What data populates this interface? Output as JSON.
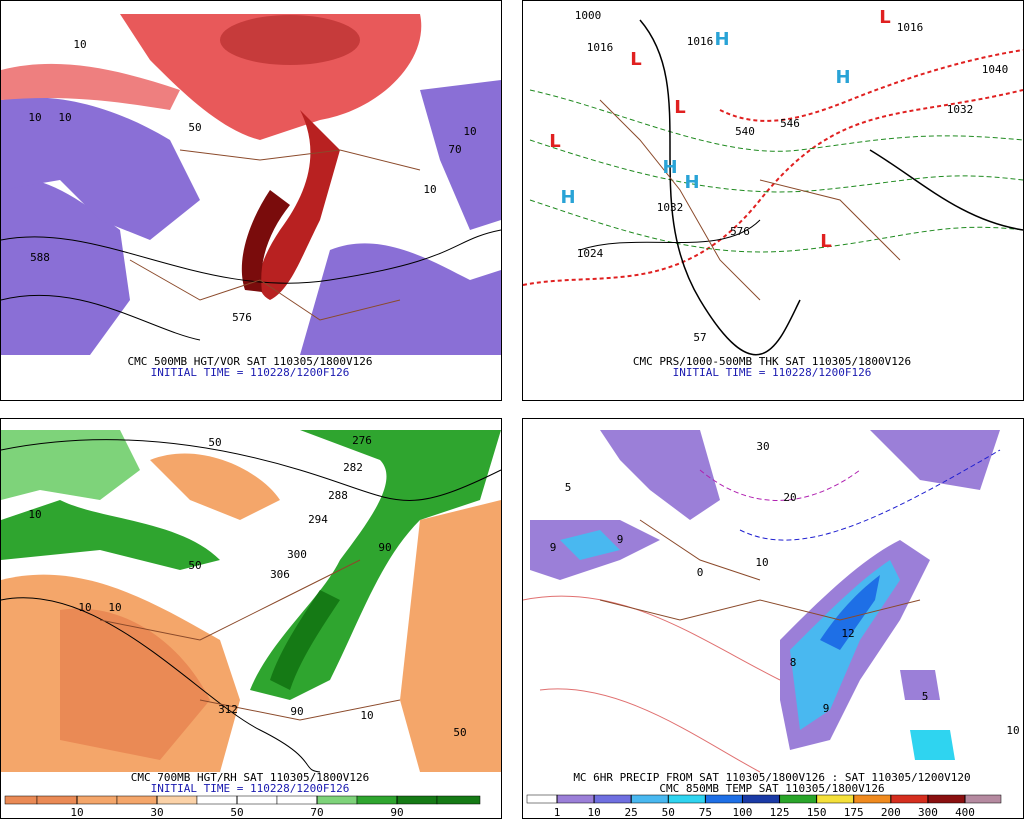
{
  "panels": [
    {
      "caption": [
        "CMC 500MB HGT/VOR SAT 110305/1800V126",
        "INITIAL TIME = 110228/1200F126"
      ],
      "contour_labels": [
        "588",
        "10",
        "10",
        "10",
        "50",
        "10",
        "10",
        "70",
        "576"
      ]
    },
    {
      "caption": [
        "CMC PRS/1000-500MB THK SAT 110305/1800V126",
        "INITIAL TIME = 110228/1200F126"
      ],
      "contour_labels": [
        "1000",
        "1016",
        "1016",
        "1016",
        "1040",
        "1032",
        "1032",
        "1024",
        "540",
        "546",
        "576",
        "57",
        "H",
        "H",
        "H",
        "H",
        "H",
        "L",
        "L",
        "L",
        "L",
        "L"
      ]
    },
    {
      "caption": [
        "CMC 700MB HGT/RH SAT 110305/1800V126",
        "INITIAL TIME = 110228/1200F126"
      ],
      "contour_labels": [
        "276",
        "282",
        "288",
        "294",
        "50",
        "50",
        "10",
        "10",
        "10",
        "90",
        "300",
        "306",
        "312",
        "90",
        "50",
        "10"
      ],
      "colorbar": {
        "ticks": [
          10,
          30,
          50,
          70,
          90
        ],
        "colors": [
          "#ea8a55",
          "#ea8a55",
          "#f4a66a",
          "#f4a66a",
          "#fbd2a8",
          "#ffffff",
          "#ffffff",
          "#ffffff",
          "#7ed37a",
          "#2fa52f",
          "#157a15",
          "#157a15"
        ]
      }
    },
    {
      "caption": [
        "MC 6HR PRECIP FROM SAT 110305/1800V126 : SAT 110305/1200V120",
        "CMC 850MB TEMP SAT 110305/1800V126"
      ],
      "contour_labels": [
        "30",
        "20",
        "10",
        "0",
        "5",
        "9",
        "9",
        "5",
        "8",
        "12",
        "9",
        "10"
      ],
      "colorbar": {
        "ticks": [
          1,
          10,
          25,
          50,
          75,
          100,
          125,
          150,
          175,
          200,
          300,
          400
        ],
        "colors": [
          "#ffffff",
          "#9b7fd8",
          "#6f6fe0",
          "#49b8f0",
          "#2fd4f0",
          "#1e6fe6",
          "#1a3aa6",
          "#2aa52a",
          "#f4e03a",
          "#f08a1e",
          "#d52e1e",
          "#8a1010",
          "#b58aa0"
        ]
      }
    }
  ]
}
